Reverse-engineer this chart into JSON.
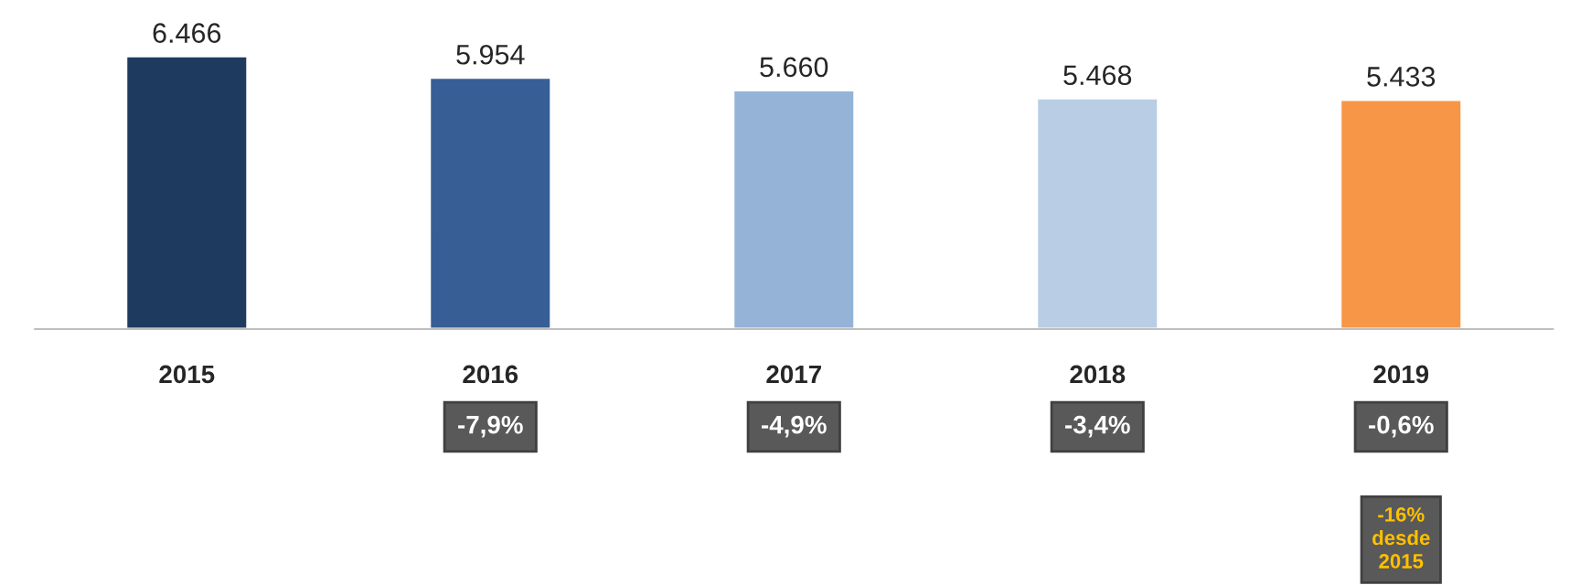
{
  "chart_data": {
    "type": "bar",
    "categories": [
      "2015",
      "2016",
      "2017",
      "2018",
      "2019"
    ],
    "values": [
      6466,
      5954,
      5660,
      5468,
      5433
    ],
    "value_labels": [
      "6.466",
      "5.954",
      "5.660",
      "5.468",
      "5.433"
    ],
    "colors": [
      "#1f3a5f",
      "#375f96",
      "#95b3d7",
      "#b9cde5",
      "#f79646"
    ],
    "tick_labels": "x",
    "annotations": [
      "-7,9%",
      "-4,9%",
      "-3,4%",
      "-0,6%",
      "-16%\ndesde\n2015"
    ]
  }
}
